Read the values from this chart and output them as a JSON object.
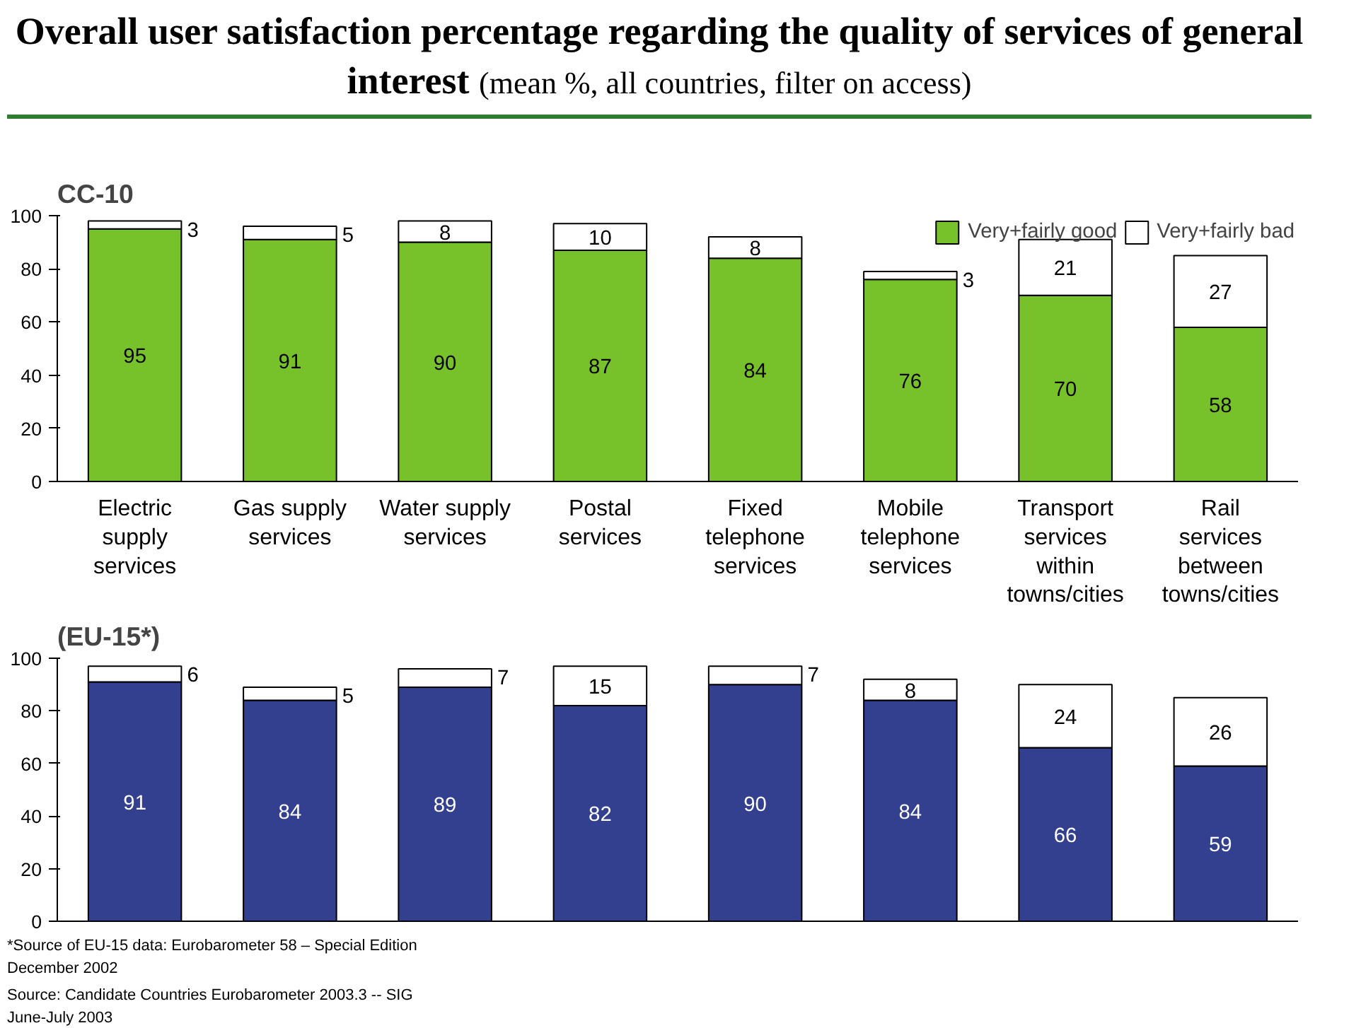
{
  "chart_data": [
    {
      "type": "bar",
      "title": "Overall user satisfaction percentage regarding the quality of services of general interest",
      "subtitle": "(mean %, all countries, filter on access)",
      "legend_title": "CC-10",
      "categories": [
        "Electric supply services",
        "Gas supply services",
        "Water supply services",
        "Postal services",
        "Fixed telephone services",
        "Mobile telephone services",
        "Transport services within towns/cities",
        "Rail services between towns/cities"
      ],
      "stacked": true,
      "data_labels": true,
      "ylim": [
        0,
        100
      ],
      "yticks": [
        0,
        20,
        40,
        60,
        80,
        100
      ],
      "grid": false,
      "legend": "top right",
      "series": [
        {
          "name": "Very+fairly good",
          "color": "#77c12a",
          "values": [
            95,
            91,
            90,
            87,
            84,
            76,
            70,
            58
          ]
        },
        {
          "name": "Very+fairly bad",
          "color": "#ffffff",
          "values": [
            3,
            5,
            8,
            10,
            8,
            3,
            21,
            27
          ]
        }
      ]
    },
    {
      "type": "bar",
      "legend_title": "(EU-15*)",
      "categories": [
        "Electric supply services",
        "Gas supply services",
        "Water supply services",
        "Postal services",
        "Fixed telephone services",
        "Mobile telephone services",
        "Transport services within towns/cities",
        "Rail services between towns/cities"
      ],
      "stacked": true,
      "data_labels": true,
      "ylim": [
        0,
        100
      ],
      "yticks": [
        0,
        20,
        40,
        60,
        80,
        100
      ],
      "grid": false,
      "tick_labels": "y",
      "series": [
        {
          "color": "#333f8f",
          "values": [
            91,
            84,
            89,
            82,
            90,
            84,
            66,
            59
          ]
        },
        {
          "color": "#ffffff",
          "values": [
            6,
            5,
            7,
            15,
            7,
            8,
            24,
            26
          ]
        }
      ],
      "annotations": [
        "*Source of EU-15 data: Eurobarometer 58 – Special Edition December 2002",
        "Source: Candidate Countries Eurobarometer 2003.3 -- SIG June-July 2003"
      ]
    }
  ]
}
